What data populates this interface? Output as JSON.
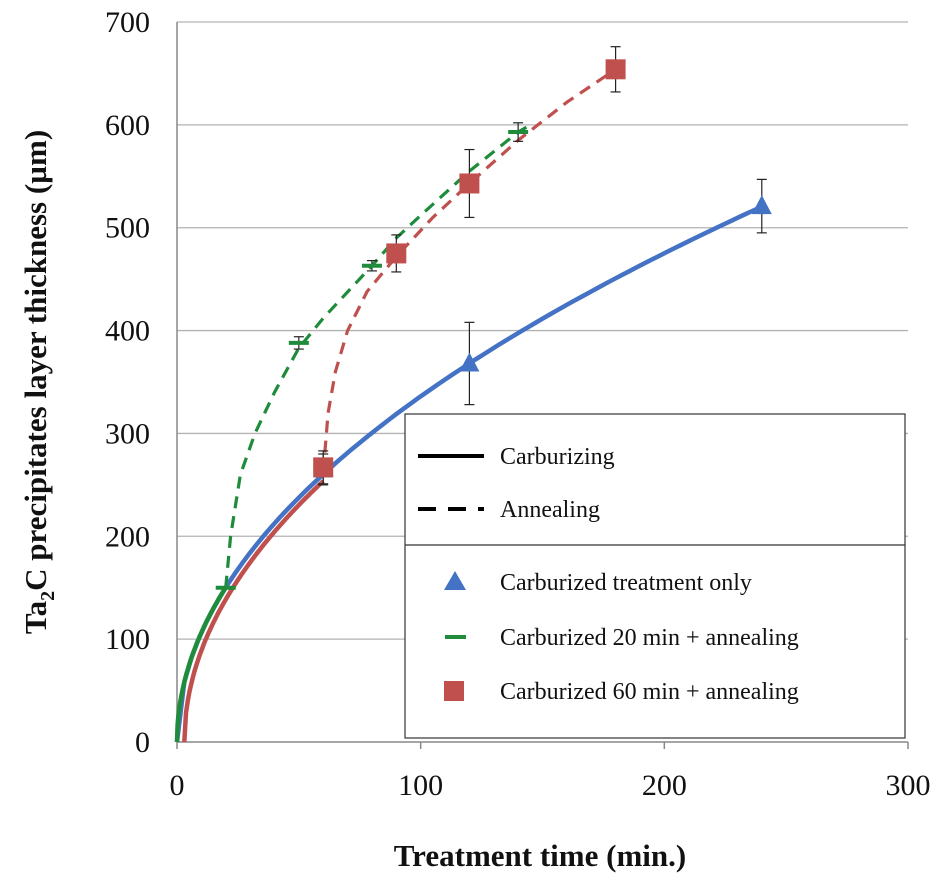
{
  "chart_data": {
    "type": "scatter",
    "xlabel": "Treatment time (min.)",
    "ylabel": "Ta2C precipitates layer thickness (µm)",
    "ylabel_parts": {
      "pre": "Ta",
      "sub": "2",
      "post": "C precipitates layer thickness (µm)"
    },
    "xlim": [
      0,
      300
    ],
    "ylim": [
      0,
      700
    ],
    "x_ticks": [
      0,
      100,
      200,
      300
    ],
    "y_ticks": [
      0,
      100,
      200,
      300,
      400,
      500,
      600,
      700
    ],
    "grid": "horizontal",
    "legend_position": "bottom-right",
    "line_legend": [
      {
        "label": "Carburizing",
        "style": "solid"
      },
      {
        "label": "Annealing",
        "style": "dashed"
      }
    ],
    "series": [
      {
        "name": "Carburized treatment only",
        "marker": "triangle",
        "color": "#4472c4",
        "points": [
          {
            "x": 60,
            "y": 265,
            "err": 15
          },
          {
            "x": 120,
            "y": 368,
            "err": 40
          },
          {
            "x": 240,
            "y": 521,
            "err": 26
          }
        ],
        "curve": {
          "style": "solid",
          "fit": "sqrt",
          "k": 33.6,
          "x_from": 0,
          "x_to": 240
        }
      },
      {
        "name": "Carburized 20 min + annealing",
        "marker": "dash",
        "color": "#1e8c3a",
        "points": [
          {
            "x": 20,
            "y": 150,
            "err": 0
          },
          {
            "x": 50,
            "y": 388,
            "err": 6
          },
          {
            "x": 80,
            "y": 463,
            "err": 5
          },
          {
            "x": 140,
            "y": 593,
            "err": 9
          }
        ],
        "curve": {
          "style": "dashed",
          "carb_until": 20,
          "k_carb": 33.6,
          "points": [
            [
              20,
              150
            ],
            [
              22,
              200
            ],
            [
              26,
              260
            ],
            [
              32,
              300
            ],
            [
              40,
              340
            ],
            [
              50,
              383
            ],
            [
              60,
              412
            ],
            [
              80,
              463
            ],
            [
              90,
              490
            ],
            [
              100,
              512
            ],
            [
              120,
              555
            ],
            [
              140,
              593
            ],
            [
              145,
              600
            ]
          ]
        }
      },
      {
        "name": "Carburized 60 min + annealing",
        "marker": "square",
        "color": "#c0504d",
        "points": [
          {
            "x": 60,
            "y": 267,
            "err": 16
          },
          {
            "x": 90,
            "y": 475,
            "err": 18
          },
          {
            "x": 120,
            "y": 543,
            "err": 33
          },
          {
            "x": 180,
            "y": 654,
            "err": 22
          }
        ],
        "curve": {
          "style": "dashed",
          "carb_from": 3,
          "carb_until": 60,
          "k_carb": 33.6,
          "points": [
            [
              60,
              262
            ],
            [
              62,
              320
            ],
            [
              65,
              360
            ],
            [
              70,
              400
            ],
            [
              78,
              438
            ],
            [
              90,
              472
            ],
            [
              105,
              510
            ],
            [
              120,
              543
            ],
            [
              140,
              585
            ],
            [
              160,
              622
            ],
            [
              180,
              654
            ]
          ]
        }
      }
    ]
  }
}
